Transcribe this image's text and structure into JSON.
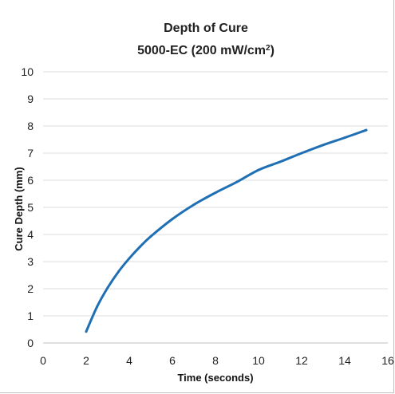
{
  "chart_data": {
    "type": "line",
    "title": "Depth of Cure",
    "subtitle_main": "5000-EC (200 mW/cm",
    "subtitle_sup": "2",
    "subtitle_end": ")",
    "xlabel": "Time (seconds)",
    "ylabel": "Cure Depth (mm)",
    "xlim": [
      0,
      16
    ],
    "ylim": [
      0,
      10
    ],
    "x_ticks": [
      "0",
      "2",
      "4",
      "6",
      "8",
      "10",
      "12",
      "14",
      "16"
    ],
    "y_ticks": [
      "0",
      "1",
      "2",
      "3",
      "4",
      "5",
      "6",
      "7",
      "8",
      "9",
      "10"
    ],
    "grid": "horizontal",
    "legend": "none",
    "series": [
      {
        "color": "#1f6fb4",
        "x": [
          2,
          2.5,
          3,
          3.5,
          4,
          4.5,
          5,
          6,
          7,
          8,
          9,
          10,
          11,
          12,
          13,
          14,
          15
        ],
        "y": [
          0.42,
          1.33,
          2.04,
          2.63,
          3.12,
          3.55,
          3.93,
          4.57,
          5.1,
          5.54,
          5.94,
          6.38,
          6.68,
          7.0,
          7.3,
          7.57,
          7.85
        ]
      }
    ]
  }
}
